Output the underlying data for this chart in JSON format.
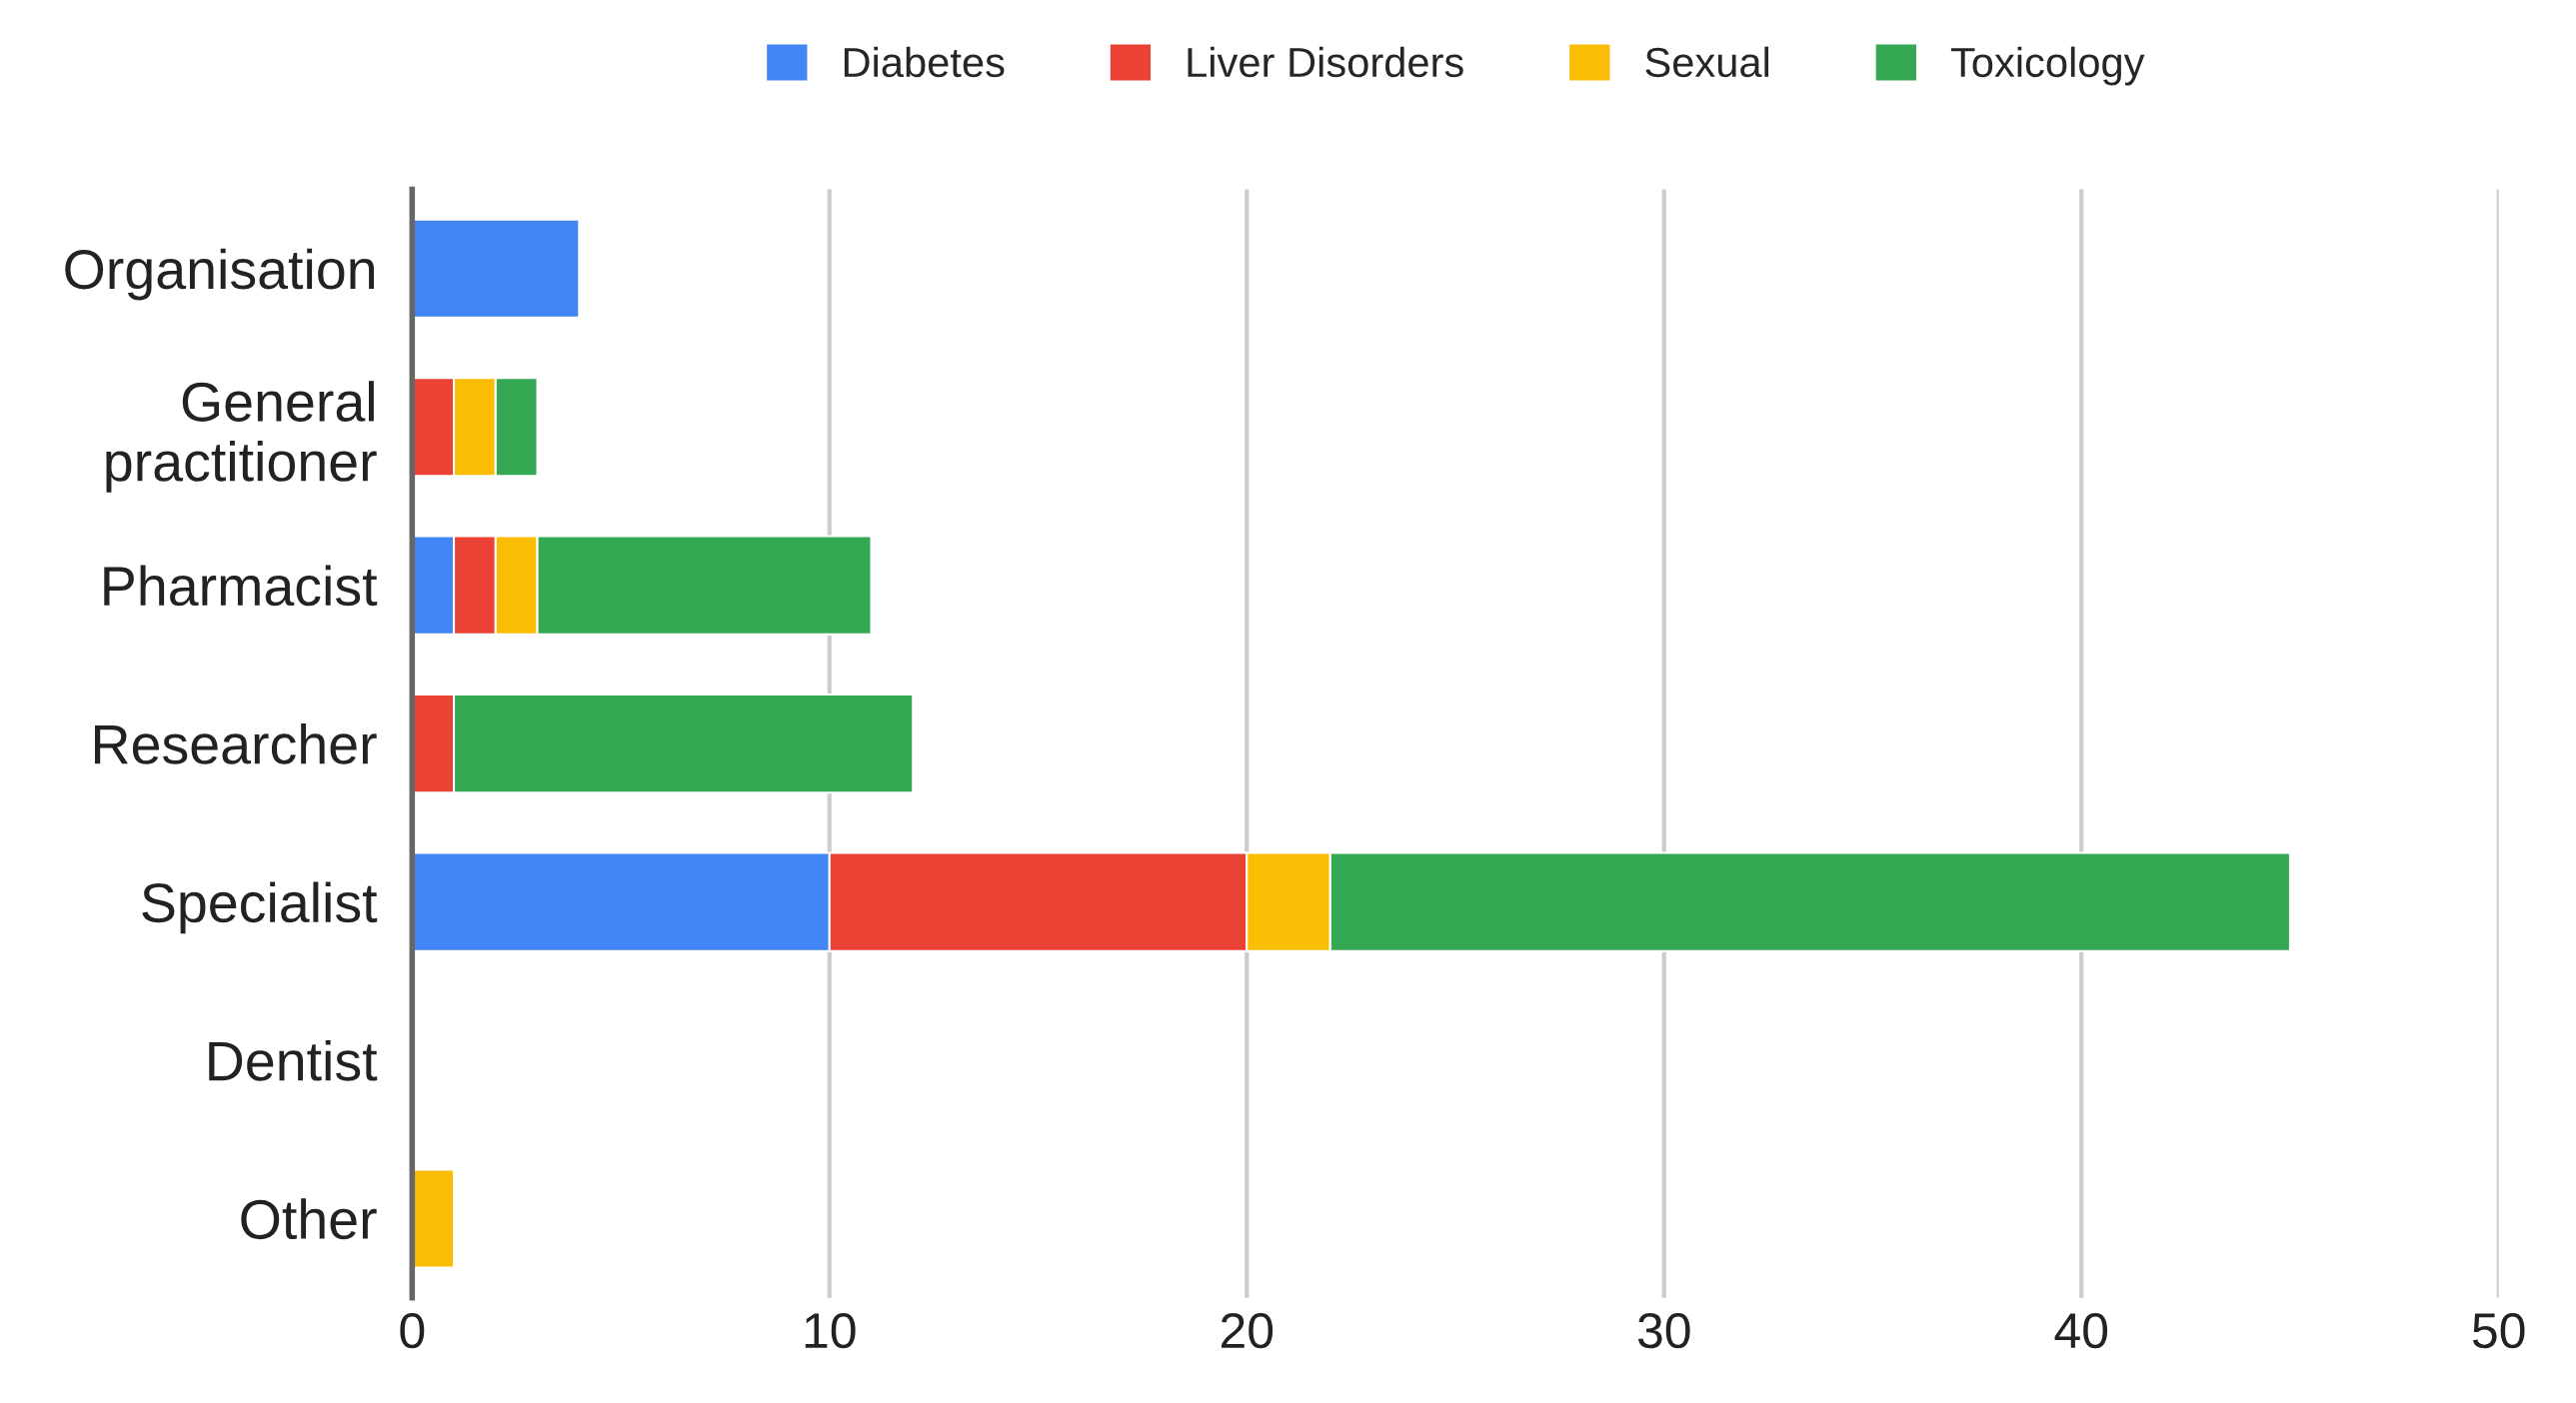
{
  "chart_data": {
    "type": "bar",
    "orientation": "horizontal",
    "stacked": true,
    "categories": [
      "Organisation",
      "General\npractitioner",
      "Pharmacist",
      "Researcher",
      "Specialist",
      "Dentist",
      "Other"
    ],
    "series": [
      {
        "name": "Diabetes",
        "color": "#4285f4",
        "values": [
          4,
          null,
          1,
          null,
          10,
          null,
          null
        ]
      },
      {
        "name": "Liver Disorders",
        "color": "#ea4335",
        "values": [
          null,
          1,
          1,
          1,
          10,
          null,
          null
        ]
      },
      {
        "name": "Sexual",
        "color": "#fbbc04",
        "values": [
          null,
          1,
          1,
          null,
          2,
          null,
          1
        ]
      },
      {
        "name": "Toxicology",
        "color": "#34a853",
        "values": [
          null,
          1,
          8,
          11,
          23,
          null,
          null
        ]
      }
    ],
    "xlim": [
      0,
      50
    ],
    "xticks": [
      0,
      10,
      20,
      30,
      40,
      50
    ],
    "grid": "x",
    "legend": "top"
  }
}
